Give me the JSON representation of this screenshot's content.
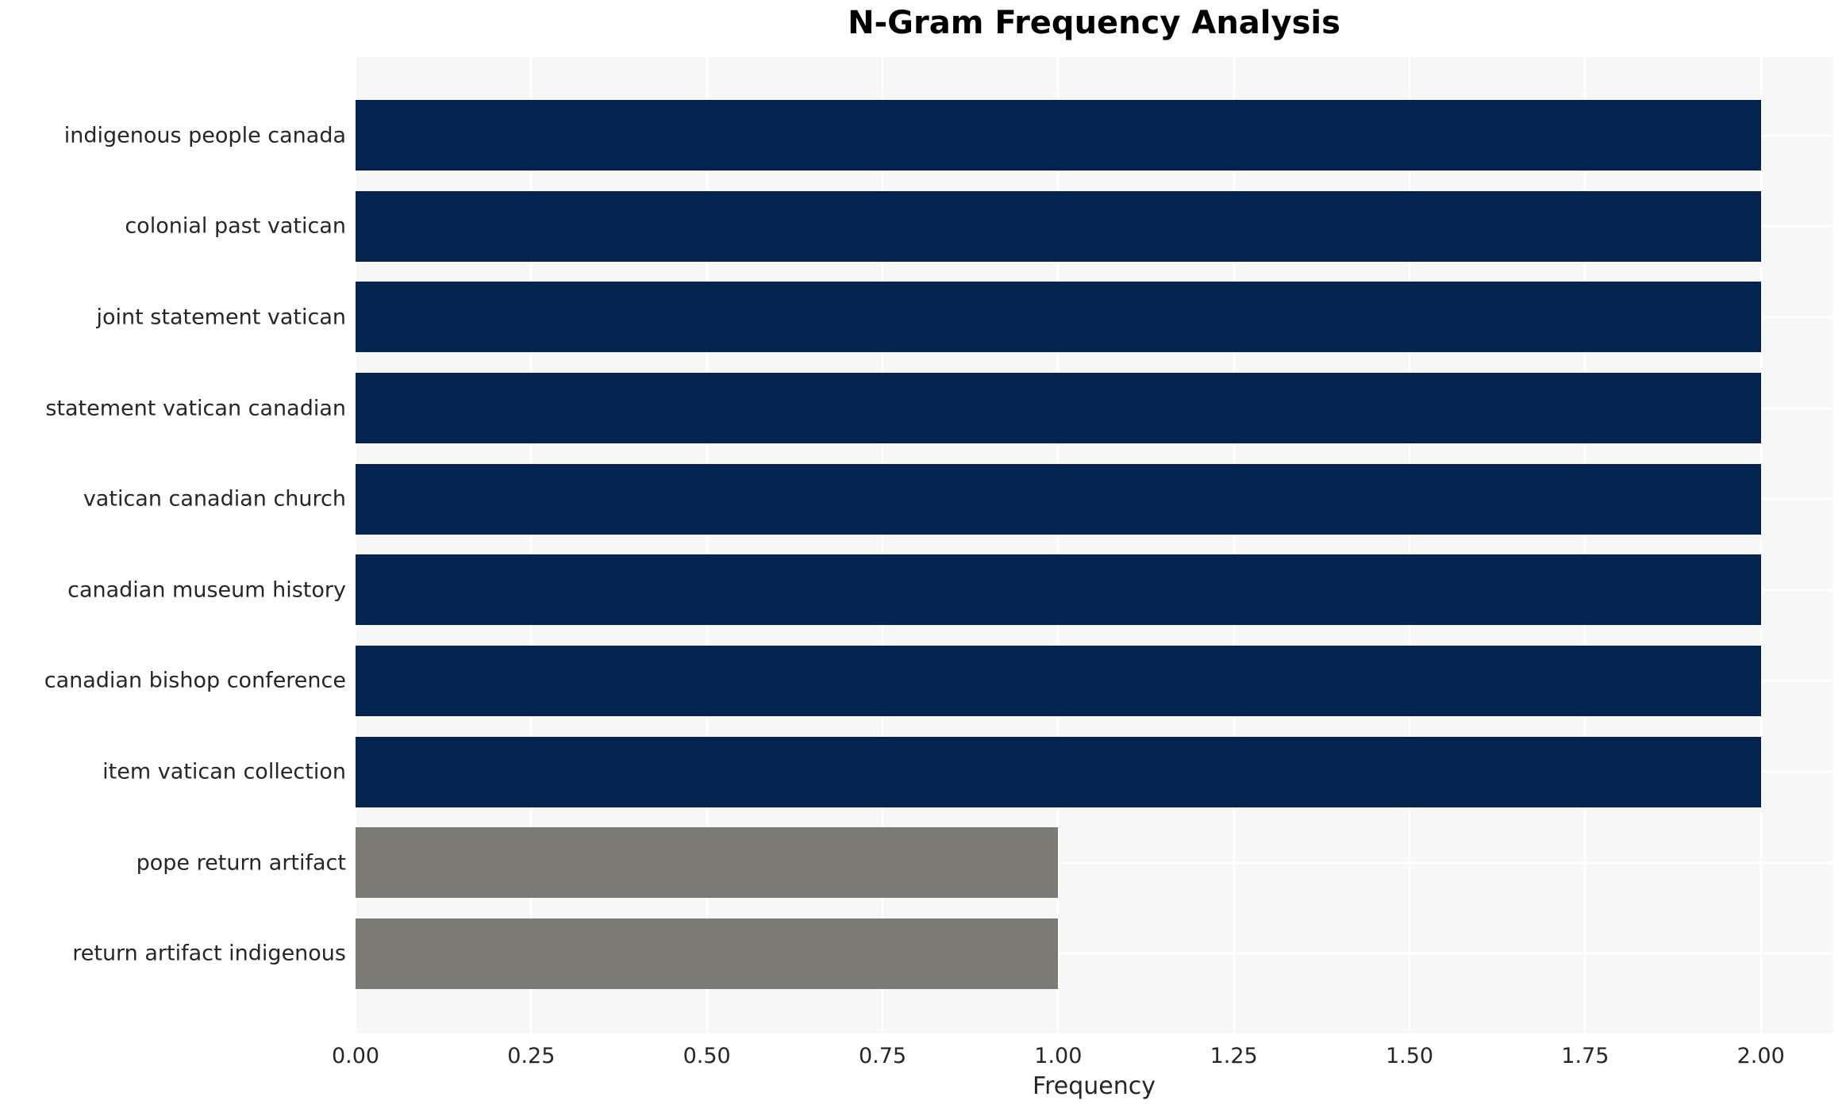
{
  "chart_data": {
    "type": "bar",
    "orientation": "horizontal",
    "title": "N-Gram Frequency Analysis",
    "xlabel": "Frequency",
    "ylabel": "",
    "categories": [
      "indigenous people canada",
      "colonial past vatican",
      "joint statement vatican",
      "statement vatican canadian",
      "vatican canadian church",
      "canadian museum history",
      "canadian bishop conference",
      "item vatican collection",
      "pope return artifact",
      "return artifact indigenous"
    ],
    "values": [
      2,
      2,
      2,
      2,
      2,
      2,
      2,
      2,
      1,
      1
    ],
    "bar_colors": [
      "#032550",
      "#032550",
      "#032550",
      "#032550",
      "#032550",
      "#032550",
      "#032550",
      "#032550",
      "#7b7a75",
      "#7b7a75"
    ],
    "xticks": [
      0,
      0.25,
      0.5,
      0.75,
      1.0,
      1.25,
      1.5,
      1.75,
      2.0
    ],
    "xtick_labels": [
      "0.00",
      "0.25",
      "0.50",
      "0.75",
      "1.00",
      "1.25",
      "1.50",
      "1.75",
      "2.00"
    ],
    "xlim": [
      0,
      2.102
    ],
    "grid": "white-on-light-gray, vertical at xticks and horizontal at category centers",
    "legend_position": "none",
    "colors": {
      "figure_background": "#ffffff",
      "plot_background": "#f7f7f7",
      "gridline": "#ffffff",
      "bar_frequent": "#032550",
      "bar_infrequent": "#7b7a75",
      "tick_text": "#262626",
      "title_text": "#000000"
    }
  }
}
